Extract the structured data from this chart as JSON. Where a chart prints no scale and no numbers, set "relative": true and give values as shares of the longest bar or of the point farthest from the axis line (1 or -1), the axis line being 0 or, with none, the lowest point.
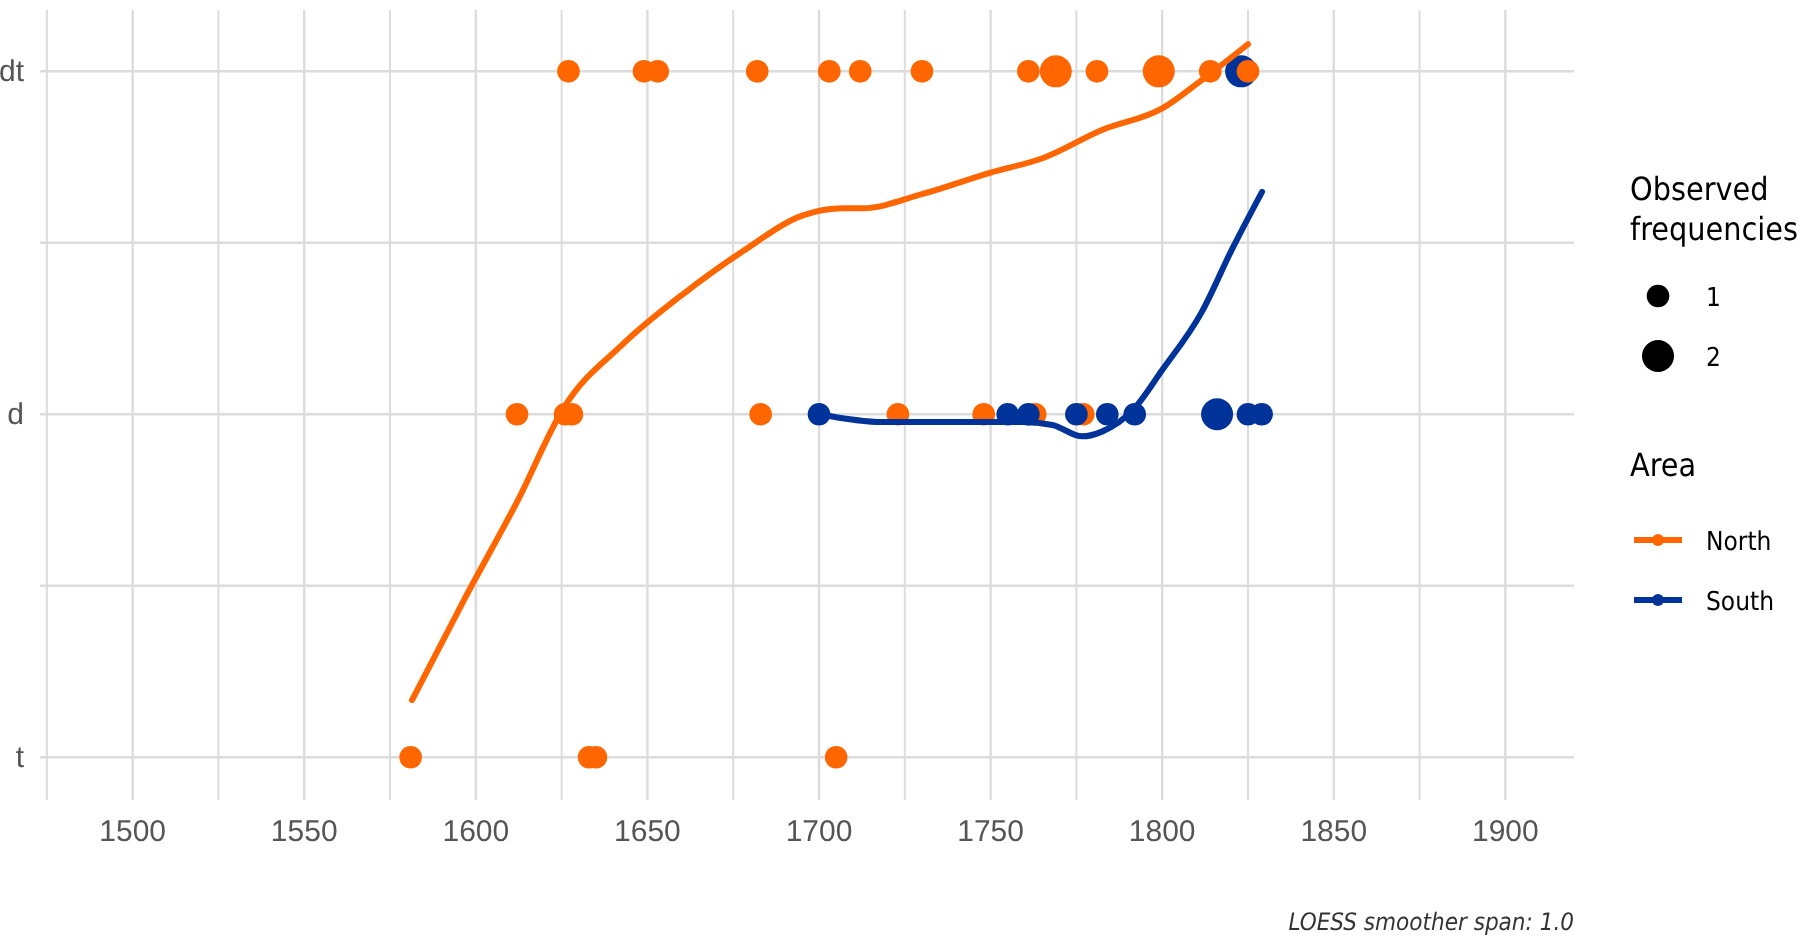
{
  "chart_data": {
    "type": "bubble",
    "relative": true,
    "xlim": [
      1473,
      1920
    ],
    "y_categories": [
      "dt",
      "d",
      "t"
    ],
    "xticks": [
      {
        "value": 1475,
        "label": null
      },
      1500,
      {
        "value": 1525,
        "label": null
      },
      1550,
      {
        "value": 1575,
        "label": null
      },
      1600,
      {
        "value": 1625,
        "label": null
      },
      1650,
      {
        "value": 1675,
        "label": null
      },
      1700,
      {
        "value": 1725,
        "label": null
      },
      1750,
      {
        "value": 1775,
        "label": null
      },
      1800,
      {
        "value": 1825,
        "label": null
      },
      1850,
      {
        "value": 1875,
        "label": null
      },
      1900
    ],
    "grid": true,
    "legend": "right",
    "legend_title": "Area",
    "size_legend": [
      1,
      2
    ],
    "annotations": [
      "Observed frequencies",
      "LOESS smoother span: 1.0"
    ],
    "series": [
      {
        "name": "North",
        "color": "#ff6600",
        "x": [
          1581,
          1633,
          1635,
          1705,
          1612,
          1626,
          1628,
          1683,
          1723,
          1748,
          1763,
          1777,
          1627,
          1649,
          1653,
          1682,
          1703,
          1712,
          1730,
          1761,
          1769,
          1781,
          1799,
          1814,
          1825
        ],
        "values": [
          0,
          0,
          0,
          0,
          0.481,
          0.481,
          0.481,
          0.481,
          0.481,
          0.481,
          0.481,
          0.481,
          0.962,
          0.962,
          0.962,
          0.962,
          0.962,
          0.962,
          0.962,
          0.962,
          0.962,
          0.962,
          0.962,
          0.962,
          0.962
        ],
        "sizes": [
          1,
          1,
          1,
          1,
          1,
          1,
          1,
          1,
          1,
          1,
          1,
          1,
          1,
          1,
          1,
          1,
          1,
          1,
          1,
          1,
          2,
          1,
          2,
          1,
          1
        ]
      },
      {
        "name": "South",
        "color": "#003399",
        "x": [
          1700,
          1755,
          1761,
          1775,
          1784,
          1792,
          1816,
          1825,
          1829,
          1823
        ],
        "values": [
          0.481,
          0.481,
          0.481,
          0.481,
          0.481,
          0.481,
          0.481,
          0.481,
          0.481,
          0.962
        ],
        "sizes": [
          1,
          1,
          1,
          1,
          1,
          1,
          2,
          1,
          1,
          2
        ]
      },
      {
        "type": "line",
        "color": "#ff6600",
        "x": [
          1581.4,
          1596.5,
          1612.2,
          1625.6,
          1643,
          1660.5,
          1677.9,
          1695.3,
          1707,
          1712.8,
          1730.2,
          1750,
          1765.1,
          1782.6,
          1800,
          1811.6,
          1825
        ],
        "values": [
          0.08,
          0.22,
          0.36,
          0.49,
          0.58,
          0.65,
          0.71,
          0.76,
          0.77,
          0.77,
          0.79,
          0.82,
          0.84,
          0.88,
          0.91,
          0.95,
          1
        ]
      },
      {
        "type": "line",
        "color": "#003399",
        "x": [
          1700,
          1718.6,
          1741.9,
          1759.3,
          1768,
          1776.7,
          1782.6,
          1791.3,
          1800,
          1811.6,
          1820.3,
          1829.1
        ],
        "values": [
          0.481,
          0.47,
          0.47,
          0.47,
          0.466,
          0.45,
          0.457,
          0.486,
          0.543,
          0.625,
          0.712,
          0.793
        ]
      }
    ]
  }
}
